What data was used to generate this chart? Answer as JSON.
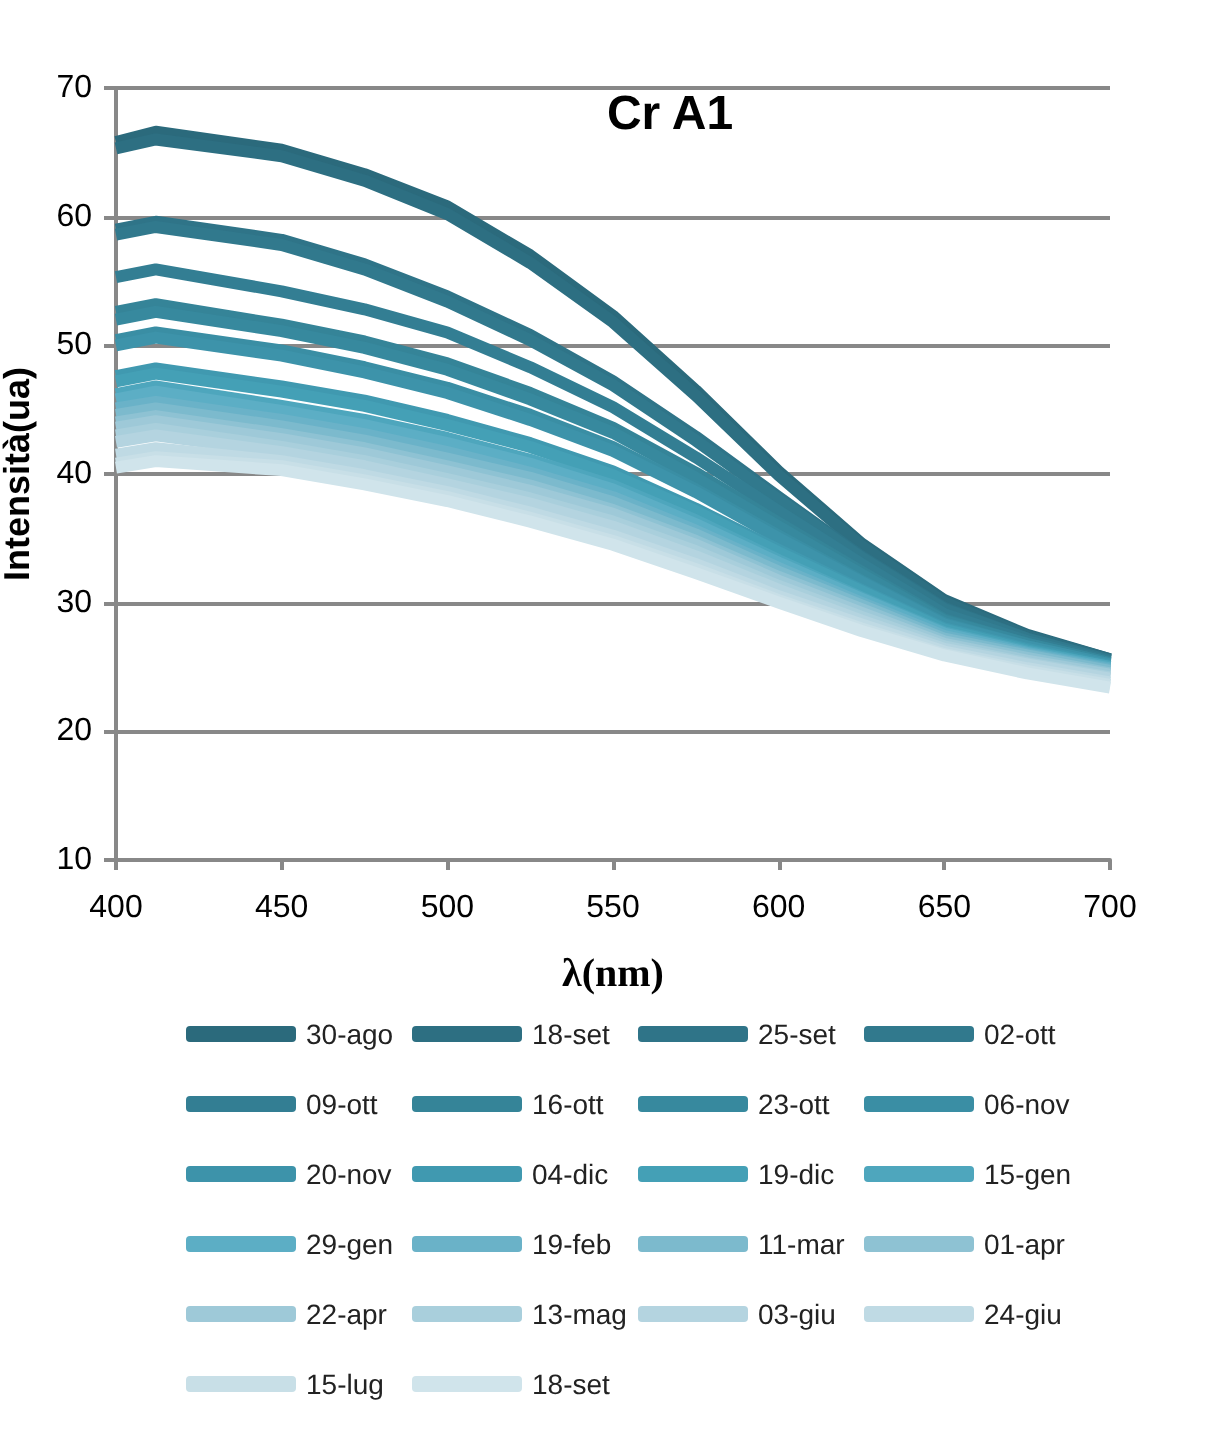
{
  "chart_data": {
    "type": "line",
    "title": "Cr A1",
    "xlabel": "λ(nm)",
    "ylabel": "Intensità(ua)",
    "x": [
      400,
      412,
      450,
      475,
      500,
      525,
      550,
      575,
      600,
      625,
      650,
      675,
      700
    ],
    "xlim": [
      400,
      700
    ],
    "xticks": [
      400,
      450,
      500,
      550,
      600,
      650,
      700
    ],
    "ylim": [
      10,
      70
    ],
    "yticks": [
      10,
      20,
      30,
      40,
      50,
      60,
      70
    ],
    "grid": "y",
    "legend": "bottom",
    "marker": "none",
    "line_style": "solid",
    "series": [
      {
        "name": "30-ago",
        "color": "#2b6a7c",
        "values": [
          65.8,
          66.6,
          65.2,
          63.3,
          60.8,
          57.0,
          52.3,
          46.5,
          40.2,
          34.6,
          30.2,
          27.5,
          25.6
        ]
      },
      {
        "name": "18-set",
        "color": "#2d6f82",
        "values": [
          65.3,
          66.0,
          64.7,
          62.8,
          60.2,
          56.4,
          51.8,
          46.1,
          39.9,
          34.4,
          30.0,
          27.4,
          25.6
        ]
      },
      {
        "name": "25-set",
        "color": "#2f7488",
        "values": [
          59.0,
          59.6,
          58.2,
          56.3,
          53.8,
          50.8,
          47.2,
          42.9,
          38.2,
          33.6,
          29.6,
          27.2,
          25.5
        ]
      },
      {
        "name": "02-ott",
        "color": "#31798d",
        "values": [
          58.6,
          59.2,
          57.8,
          55.9,
          53.4,
          50.4,
          46.9,
          42.6,
          38.0,
          33.5,
          29.5,
          27.2,
          25.5
        ]
      },
      {
        "name": "09-ott",
        "color": "#337e93",
        "values": [
          55.3,
          55.9,
          54.2,
          52.8,
          51.0,
          48.3,
          45.2,
          41.3,
          37.1,
          33.0,
          29.1,
          27.0,
          25.4
        ]
      },
      {
        "name": "16-ott",
        "color": "#358498",
        "values": [
          52.6,
          53.2,
          51.6,
          50.3,
          48.6,
          46.3,
          43.6,
          40.1,
          36.2,
          32.4,
          28.7,
          26.8,
          25.3
        ]
      },
      {
        "name": "23-ott",
        "color": "#37899e",
        "values": [
          52.0,
          52.6,
          51.1,
          49.8,
          48.1,
          45.8,
          43.2,
          39.7,
          35.9,
          32.2,
          28.6,
          26.8,
          25.3
        ]
      },
      {
        "name": "06-nov",
        "color": "#3a8ea4",
        "values": [
          50.4,
          51.0,
          49.6,
          48.3,
          46.7,
          44.6,
          42.1,
          38.8,
          35.2,
          31.7,
          28.4,
          26.6,
          25.2
        ]
      },
      {
        "name": "20-nov",
        "color": "#3d93aa",
        "values": [
          50.0,
          50.6,
          49.2,
          47.9,
          46.3,
          44.2,
          41.8,
          38.6,
          35.0,
          31.6,
          28.3,
          26.6,
          25.2
        ]
      },
      {
        "name": "04-dic",
        "color": "#4099b0",
        "values": [
          47.6,
          48.2,
          46.8,
          45.7,
          44.2,
          42.4,
          40.2,
          37.3,
          34.1,
          31.0,
          28.0,
          26.4,
          25.1
        ]
      },
      {
        "name": "19-dic",
        "color": "#44a0b6",
        "values": [
          47.2,
          47.8,
          46.4,
          45.3,
          43.8,
          42.1,
          39.9,
          37.1,
          33.9,
          30.9,
          27.9,
          26.3,
          25.0
        ]
      },
      {
        "name": "15-gen",
        "color": "#4ea6bd",
        "values": [
          46.2,
          46.8,
          45.3,
          44.2,
          42.8,
          41.1,
          39.1,
          36.4,
          33.3,
          30.4,
          27.7,
          26.2,
          25.0
        ]
      },
      {
        "name": "29-gen",
        "color": "#5caec5",
        "values": [
          45.8,
          46.4,
          44.9,
          43.8,
          42.4,
          40.8,
          38.8,
          36.1,
          33.1,
          30.3,
          27.6,
          26.1,
          24.9
        ]
      },
      {
        "name": "19-feb",
        "color": "#6ab2c8",
        "values": [
          45.1,
          45.6,
          44.2,
          43.1,
          41.7,
          40.1,
          38.2,
          35.6,
          32.7,
          30.0,
          27.4,
          26.0,
          24.8
        ]
      },
      {
        "name": "11-mar",
        "color": "#7cbacd",
        "values": [
          44.6,
          45.1,
          43.7,
          42.6,
          41.2,
          39.7,
          37.8,
          35.3,
          32.4,
          29.8,
          27.2,
          25.9,
          24.7
        ]
      },
      {
        "name": "01-apr",
        "color": "#8ec2d3",
        "values": [
          44.0,
          44.5,
          43.1,
          42.0,
          40.6,
          39.1,
          37.2,
          34.8,
          32.0,
          29.5,
          27.0,
          25.7,
          24.5
        ]
      },
      {
        "name": "22-apr",
        "color": "#9ec9d8",
        "values": [
          43.6,
          44.1,
          42.7,
          41.6,
          40.2,
          38.7,
          36.9,
          34.5,
          31.7,
          29.2,
          26.8,
          25.5,
          24.4
        ]
      },
      {
        "name": "13-mag",
        "color": "#a9cfdc",
        "values": [
          43.0,
          43.5,
          42.1,
          41.0,
          39.6,
          38.1,
          36.3,
          34.0,
          31.3,
          28.9,
          26.6,
          25.3,
          24.2
        ]
      },
      {
        "name": "03-giu",
        "color": "#b4d4e0",
        "values": [
          42.5,
          43.0,
          41.7,
          40.6,
          39.2,
          37.7,
          35.9,
          33.6,
          31.0,
          28.6,
          26.4,
          25.2,
          24.1
        ]
      },
      {
        "name": "24-giu",
        "color": "#bfdae4",
        "values": [
          41.5,
          42.0,
          41.0,
          39.9,
          38.6,
          37.0,
          35.2,
          33.0,
          30.5,
          28.3,
          26.2,
          24.9,
          23.8
        ]
      },
      {
        "name": "15-lug",
        "color": "#c8dfe7",
        "values": [
          40.8,
          41.3,
          40.6,
          39.5,
          38.2,
          36.6,
          34.8,
          32.6,
          30.2,
          28.0,
          26.0,
          24.7,
          23.6
        ]
      },
      {
        "name": "18-set",
        "color": "#d0e4eb",
        "values": [
          40.5,
          41.0,
          40.3,
          39.2,
          37.9,
          36.3,
          34.5,
          32.3,
          30.0,
          27.8,
          25.9,
          24.5,
          23.4
        ]
      }
    ]
  }
}
